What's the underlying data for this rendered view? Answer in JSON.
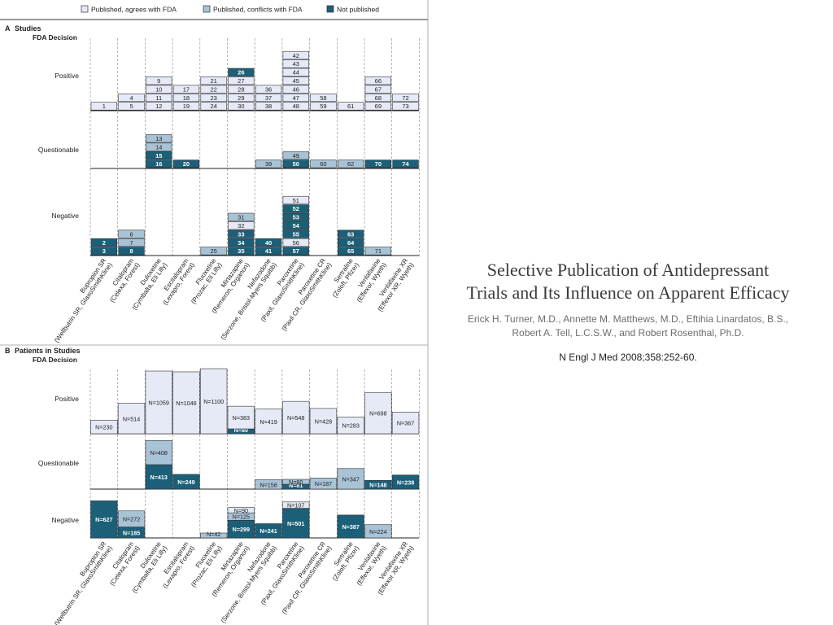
{
  "legend": [
    {
      "key": "agree",
      "label": "Published, agrees with FDA",
      "color": "#e6e9f6"
    },
    {
      "key": "conflict",
      "label": "Published, conflicts with FDA",
      "color": "#a9c3d6"
    },
    {
      "key": "unpub",
      "label": "Not published",
      "color": "#1c5f78"
    }
  ],
  "categories": [
    {
      "label": "Bupropion SR",
      "sub": "(Wellbutrin SR, GlaxoSmithKline)"
    },
    {
      "label": "Citalopram",
      "sub": "(Celexa, Forest)"
    },
    {
      "label": "Duloxetine",
      "sub": "(Cymbalta, Eli Lilly)"
    },
    {
      "label": "Escitalopram",
      "sub": "(Lexapro, Forest)"
    },
    {
      "label": "Fluoxetine",
      "sub": "(Prozac, Eli Lilly)"
    },
    {
      "label": "Mirtazapine",
      "sub": "(Remeron, Organon)"
    },
    {
      "label": "Nefazodone",
      "sub": "(Serzone, Bristol-Myers Squibb)"
    },
    {
      "label": "Paroxetine",
      "sub": "(Paxil, GlaxoSmithKline)"
    },
    {
      "label": "Paroxetine CR",
      "sub": "(Paxil CR, GlaxoSmithKline)"
    },
    {
      "label": "Sertraline",
      "sub": "(Zoloft, Pfizer)"
    },
    {
      "label": "Venlafaxine",
      "sub": "(Effexor, Wyeth)"
    },
    {
      "label": "Venlafaxine XR",
      "sub": "(Effexor XR, Wyeth)"
    }
  ],
  "chart_data": [
    {
      "type": "bar",
      "panel_letter": "A",
      "title": "Studies",
      "row_title": "FDA Decision",
      "rows": [
        "Positive",
        "Questionable",
        "Negative"
      ],
      "stacks": {
        "Positive": [
          [
            {
              "s": "agree",
              "n": "1"
            }
          ],
          [
            {
              "s": "agree",
              "n": "5"
            },
            {
              "s": "agree",
              "n": "4"
            }
          ],
          [
            {
              "s": "agree",
              "n": "12"
            },
            {
              "s": "agree",
              "n": "11"
            },
            {
              "s": "agree",
              "n": "10"
            },
            {
              "s": "agree",
              "n": "9"
            }
          ],
          [
            {
              "s": "agree",
              "n": "19"
            },
            {
              "s": "agree",
              "n": "18"
            },
            {
              "s": "agree",
              "n": "17"
            }
          ],
          [
            {
              "s": "agree",
              "n": "24"
            },
            {
              "s": "agree",
              "n": "23"
            },
            {
              "s": "agree",
              "n": "22"
            },
            {
              "s": "agree",
              "n": "21"
            }
          ],
          [
            {
              "s": "agree",
              "n": "30"
            },
            {
              "s": "agree",
              "n": "29"
            },
            {
              "s": "agree",
              "n": "28"
            },
            {
              "s": "agree",
              "n": "27"
            },
            {
              "s": "unpub",
              "n": "26"
            }
          ],
          [
            {
              "s": "agree",
              "n": "38"
            },
            {
              "s": "agree",
              "n": "37"
            },
            {
              "s": "agree",
              "n": "36"
            }
          ],
          [
            {
              "s": "agree",
              "n": "48"
            },
            {
              "s": "agree",
              "n": "47"
            },
            {
              "s": "agree",
              "n": "46"
            },
            {
              "s": "agree",
              "n": "45"
            },
            {
              "s": "agree",
              "n": "44"
            },
            {
              "s": "agree",
              "n": "43"
            },
            {
              "s": "agree",
              "n": "42"
            }
          ],
          [
            {
              "s": "agree",
              "n": "59"
            },
            {
              "s": "agree",
              "n": "58"
            }
          ],
          [
            {
              "s": "agree",
              "n": "61"
            }
          ],
          [
            {
              "s": "agree",
              "n": "69"
            },
            {
              "s": "agree",
              "n": "68"
            },
            {
              "s": "agree",
              "n": "67"
            },
            {
              "s": "agree",
              "n": "66"
            }
          ],
          [
            {
              "s": "agree",
              "n": "73"
            },
            {
              "s": "agree",
              "n": "72"
            }
          ]
        ],
        "Questionable": [
          [],
          [],
          [
            {
              "s": "unpub",
              "n": "16"
            },
            {
              "s": "unpub",
              "n": "15"
            },
            {
              "s": "conflict",
              "n": "14"
            },
            {
              "s": "conflict",
              "n": "13"
            }
          ],
          [
            {
              "s": "unpub",
              "n": "20"
            }
          ],
          [],
          [],
          [
            {
              "s": "conflict",
              "n": "39"
            }
          ],
          [
            {
              "s": "unpub",
              "n": "50"
            },
            {
              "s": "conflict",
              "n": "49"
            }
          ],
          [
            {
              "s": "conflict",
              "n": "60"
            }
          ],
          [
            {
              "s": "conflict",
              "n": "62"
            }
          ],
          [
            {
              "s": "unpub",
              "n": "70"
            }
          ],
          [
            {
              "s": "unpub",
              "n": "74"
            }
          ]
        ],
        "Negative": [
          [
            {
              "s": "unpub",
              "n": "3"
            },
            {
              "s": "unpub",
              "n": "2"
            }
          ],
          [
            {
              "s": "unpub",
              "n": "8"
            },
            {
              "s": "conflict",
              "n": "7"
            },
            {
              "s": "conflict",
              "n": "6"
            }
          ],
          [],
          [],
          [
            {
              "s": "conflict",
              "n": "25"
            }
          ],
          [
            {
              "s": "unpub",
              "n": "35"
            },
            {
              "s": "unpub",
              "n": "34"
            },
            {
              "s": "unpub",
              "n": "33"
            },
            {
              "s": "agree",
              "n": "32"
            },
            {
              "s": "conflict",
              "n": "31"
            }
          ],
          [
            {
              "s": "unpub",
              "n": "41"
            },
            {
              "s": "unpub",
              "n": "40"
            }
          ],
          [
            {
              "s": "unpub",
              "n": "57"
            },
            {
              "s": "agree",
              "n": "56"
            },
            {
              "s": "unpub",
              "n": "55"
            },
            {
              "s": "unpub",
              "n": "54"
            },
            {
              "s": "unpub",
              "n": "53"
            },
            {
              "s": "unpub",
              "n": "52"
            },
            {
              "s": "agree",
              "n": "51"
            }
          ],
          [],
          [
            {
              "s": "unpub",
              "n": "65"
            },
            {
              "s": "unpub",
              "n": "64"
            },
            {
              "s": "unpub",
              "n": "63"
            }
          ],
          [
            {
              "s": "conflict",
              "n": "71"
            }
          ],
          []
        ]
      }
    },
    {
      "type": "bar",
      "panel_letter": "B",
      "title": "Patients in Studies",
      "row_title": "FDA Decision",
      "rows": [
        "Positive",
        "Questionable",
        "Negative"
      ],
      "stacks": {
        "Positive": [
          [
            {
              "s": "agree",
              "v": 230,
              "label": "N=230"
            }
          ],
          [
            {
              "s": "agree",
              "v": 514,
              "label": "N=514"
            }
          ],
          [
            {
              "s": "agree",
              "v": 1059,
              "label": "N=1059"
            }
          ],
          [
            {
              "s": "agree",
              "v": 1046,
              "label": "N=1046"
            }
          ],
          [
            {
              "s": "agree",
              "v": 1100,
              "label": "N=1100"
            }
          ],
          [
            {
              "s": "unpub",
              "v": 80,
              "label": "N=80"
            },
            {
              "s": "agree",
              "v": 383,
              "label": "N=383"
            }
          ],
          [
            {
              "s": "agree",
              "v": 419,
              "label": "N=419"
            }
          ],
          [
            {
              "s": "agree",
              "v": 548,
              "label": "N=548"
            }
          ],
          [
            {
              "s": "agree",
              "v": 428,
              "label": "N=428"
            }
          ],
          [
            {
              "s": "agree",
              "v": 283,
              "label": "N=283"
            }
          ],
          [
            {
              "s": "agree",
              "v": 698,
              "label": "N=698"
            }
          ],
          [
            {
              "s": "agree",
              "v": 367,
              "label": "N=367"
            }
          ]
        ],
        "Questionable": [
          [],
          [],
          [
            {
              "s": "unpub",
              "v": 413,
              "label": "N=413"
            },
            {
              "s": "conflict",
              "v": 408,
              "label": "N=408"
            }
          ],
          [
            {
              "s": "unpub",
              "v": 249,
              "label": "N=249"
            }
          ],
          [],
          [],
          [
            {
              "s": "conflict",
              "v": 158,
              "label": "N=158"
            }
          ],
          [
            {
              "s": "unpub",
              "v": 81,
              "label": "N=81"
            },
            {
              "s": "conflict",
              "v": 80,
              "label": "N=80"
            }
          ],
          [
            {
              "s": "conflict",
              "v": 187,
              "label": "N=187"
            }
          ],
          [
            {
              "s": "conflict",
              "v": 347,
              "label": "N=347"
            }
          ],
          [
            {
              "s": "unpub",
              "v": 148,
              "label": "N=148"
            }
          ],
          [
            {
              "s": "unpub",
              "v": 238,
              "label": "N=238"
            }
          ]
        ],
        "Negative": [
          [
            {
              "s": "unpub",
              "v": 627,
              "label": "N=627"
            }
          ],
          [
            {
              "s": "unpub",
              "v": 185,
              "label": "N=185"
            },
            {
              "s": "conflict",
              "v": 272,
              "label": "N=272"
            }
          ],
          [],
          [],
          [
            {
              "s": "conflict",
              "v": 42,
              "label": "N=42"
            }
          ],
          [
            {
              "s": "unpub",
              "v": 299,
              "label": "N=299"
            },
            {
              "s": "conflict",
              "v": 125,
              "label": "N=125"
            },
            {
              "s": "agree",
              "v": 90,
              "label": "N=90"
            }
          ],
          [
            {
              "s": "unpub",
              "v": 241,
              "label": "N=241"
            }
          ],
          [
            {
              "s": "unpub",
              "v": 501,
              "label": "N=501"
            },
            {
              "s": "agree",
              "v": 107,
              "label": "N=107"
            }
          ],
          [],
          [
            {
              "s": "unpub",
              "v": 387,
              "label": "N=387"
            }
          ],
          [
            {
              "s": "conflict",
              "v": 224,
              "label": "N=224"
            }
          ],
          []
        ]
      }
    }
  ],
  "title": {
    "line1": "Selective Publication of Antidepressant",
    "line2": "Trials and Its Influence on Apparent Efficacy"
  },
  "authors": {
    "line1": "Erick H. Turner, M.D., Annette M. Matthews, M.D., Eftihia Linardatos, B.S.,",
    "line2": "Robert A. Tell, L.C.S.W., and Robert Rosenthal, Ph.D."
  },
  "citation": "N Engl J Med 2008;358:252-60."
}
